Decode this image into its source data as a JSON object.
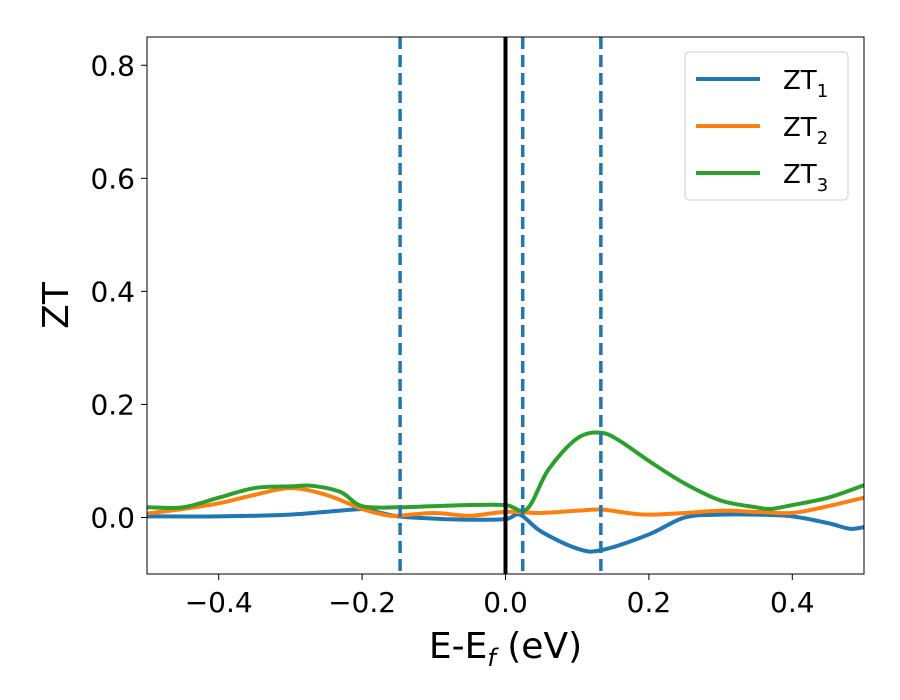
{
  "chart_data": {
    "type": "line",
    "xlabel": {
      "main": "E-E",
      "sub": "f",
      "unit": " (eV)"
    },
    "ylabel": "ZT",
    "xlim": [
      -0.5,
      0.5
    ],
    "ylim": [
      -0.1,
      0.85
    ],
    "xticks": [
      -0.4,
      -0.2,
      0.0,
      0.2,
      0.4
    ],
    "xtick_labels": [
      "−0.4",
      "−0.2",
      "0.0",
      "0.2",
      "0.4"
    ],
    "yticks": [
      0.0,
      0.2,
      0.4,
      0.6,
      0.8
    ],
    "ytick_labels": [
      "0.0",
      "0.2",
      "0.4",
      "0.6",
      "0.8"
    ],
    "grid": false,
    "legend_position": "top-right",
    "series": [
      {
        "name": "ZT",
        "name_sub": "1",
        "color": "#1f77b4",
        "x": [
          -0.5,
          -0.4,
          -0.3,
          -0.2,
          -0.18,
          -0.15,
          -0.1,
          -0.05,
          0.0,
          0.02,
          0.05,
          0.1,
          0.133,
          0.2,
          0.25,
          0.3,
          0.35,
          0.4,
          0.45,
          0.48,
          0.5
        ],
        "y": [
          0.002,
          0.002,
          0.005,
          0.015,
          0.01,
          0.002,
          -0.002,
          -0.004,
          -0.003,
          0.005,
          -0.025,
          -0.055,
          -0.058,
          -0.03,
          0.0,
          0.005,
          0.005,
          0.002,
          -0.01,
          -0.02,
          -0.017
        ]
      },
      {
        "name": "ZT",
        "name_sub": "2",
        "color": "#ff7f0e",
        "x": [
          -0.5,
          -0.45,
          -0.4,
          -0.35,
          -0.3,
          -0.25,
          -0.2,
          -0.17,
          -0.15,
          -0.1,
          -0.05,
          0.0,
          0.05,
          0.1,
          0.133,
          0.17,
          0.2,
          0.25,
          0.3,
          0.35,
          0.4,
          0.45,
          0.5
        ],
        "y": [
          0.007,
          0.015,
          0.025,
          0.04,
          0.052,
          0.04,
          0.015,
          0.005,
          0.003,
          0.008,
          0.003,
          0.01,
          0.008,
          0.012,
          0.014,
          0.008,
          0.005,
          0.008,
          0.012,
          0.01,
          0.008,
          0.02,
          0.035
        ]
      },
      {
        "name": "ZT",
        "name_sub": "3",
        "color": "#2ca02c",
        "x": [
          -0.5,
          -0.45,
          -0.4,
          -0.35,
          -0.3,
          -0.27,
          -0.23,
          -0.2,
          -0.15,
          -0.1,
          -0.05,
          0.0,
          0.03,
          0.06,
          0.1,
          0.133,
          0.16,
          0.2,
          0.25,
          0.3,
          0.35,
          0.37,
          0.4,
          0.45,
          0.5
        ],
        "y": [
          0.018,
          0.018,
          0.035,
          0.052,
          0.055,
          0.056,
          0.045,
          0.02,
          0.018,
          0.02,
          0.022,
          0.022,
          0.015,
          0.085,
          0.14,
          0.15,
          0.135,
          0.1,
          0.06,
          0.03,
          0.018,
          0.015,
          0.022,
          0.035,
          0.057
        ]
      }
    ],
    "vlines": [
      {
        "x": -0.147,
        "style": "dashed",
        "color": "#1f77b4"
      },
      {
        "x": 0.0,
        "style": "solid",
        "color": "#000000"
      },
      {
        "x": 0.024,
        "style": "dashed",
        "color": "#1f77b4"
      },
      {
        "x": 0.133,
        "style": "dashed",
        "color": "#1f77b4"
      }
    ]
  }
}
